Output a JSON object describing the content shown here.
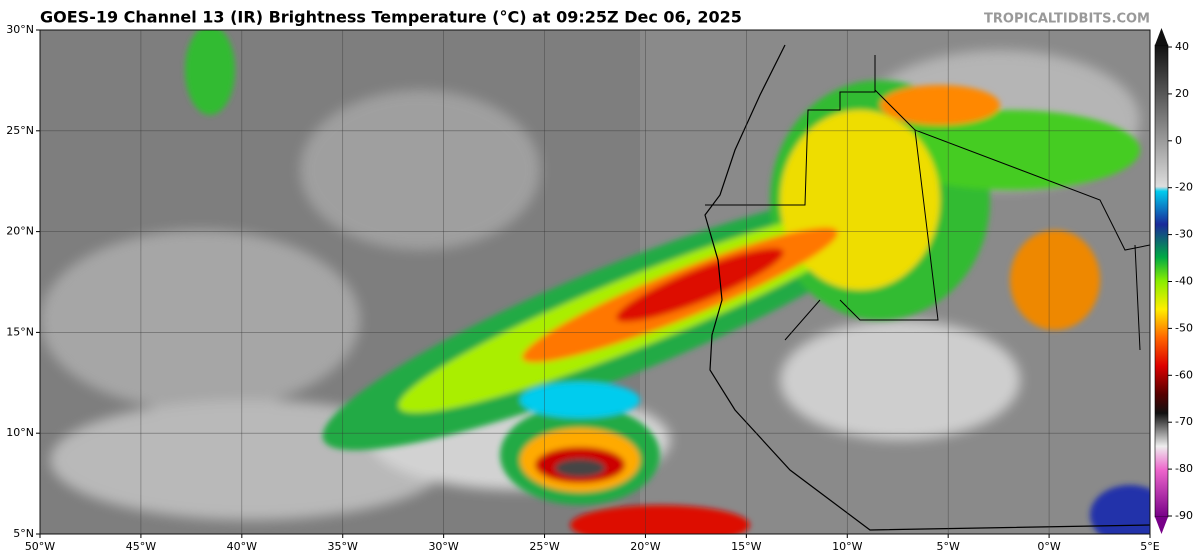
{
  "header": {
    "title": "GOES-19 Channel 13 (IR) Brightness Temperature (°C) at 09:25Z Dec 06, 2025",
    "credit": "TROPICALTIDBITS.COM"
  },
  "map": {
    "xlim": [
      -50,
      5
    ],
    "ylim": [
      5,
      30
    ],
    "xticks": [
      {
        "value": -50,
        "label": "50°W"
      },
      {
        "value": -45,
        "label": "45°W"
      },
      {
        "value": -40,
        "label": "40°W"
      },
      {
        "value": -35,
        "label": "35°W"
      },
      {
        "value": -30,
        "label": "30°W"
      },
      {
        "value": -25,
        "label": "25°W"
      },
      {
        "value": -20,
        "label": "20°W"
      },
      {
        "value": -15,
        "label": "15°W"
      },
      {
        "value": -10,
        "label": "10°W"
      },
      {
        "value": -5,
        "label": "5°W"
      },
      {
        "value": 0,
        "label": "0°W"
      },
      {
        "value": 5,
        "label": "5°E"
      }
    ],
    "yticks": [
      {
        "value": 5,
        "label": "5°N"
      },
      {
        "value": 10,
        "label": "10°N"
      },
      {
        "value": 15,
        "label": "15°N"
      },
      {
        "value": 20,
        "label": "20°N"
      },
      {
        "value": 25,
        "label": "25°N"
      },
      {
        "value": 30,
        "label": "30°N"
      }
    ],
    "grid": true
  },
  "colorbar": {
    "ticks": [
      40,
      20,
      0,
      -20,
      -30,
      -40,
      -50,
      -60,
      -70,
      -80,
      -90
    ]
  }
}
